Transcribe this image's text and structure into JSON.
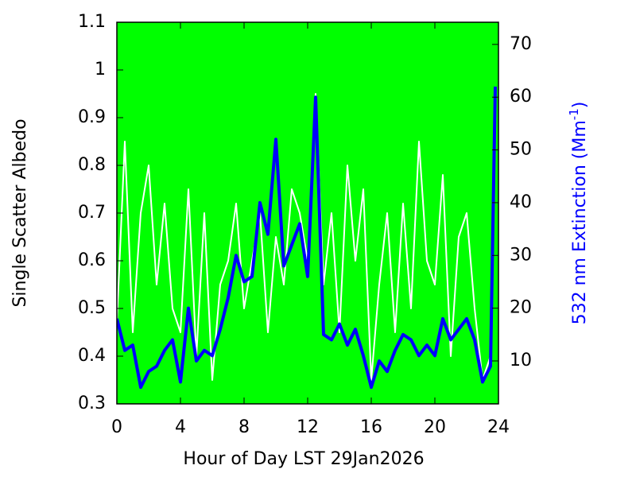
{
  "chart_data": {
    "type": "line",
    "xlabel": "Hour of Day LST 29Jan2026",
    "ylabel": "Single Scatter Albedo",
    "y2label": [
      "532 nm Extinction (Mm",
      "-1",
      ")"
    ],
    "background": "#00ff00",
    "grid": false,
    "x": [
      0,
      0.5,
      1,
      1.5,
      2,
      2.5,
      3,
      3.5,
      4,
      4.5,
      5,
      5.5,
      6,
      6.5,
      7,
      7.5,
      8,
      8.5,
      9,
      9.5,
      10,
      10.5,
      11,
      11.5,
      12,
      12.5,
      13,
      13.5,
      14,
      14.5,
      15,
      15.5,
      16,
      16.5,
      17,
      17.5,
      18,
      18.5,
      19,
      19.5,
      20,
      20.5,
      21,
      21.5,
      22,
      22.5,
      23,
      23.5,
      23.8
    ],
    "xlim": [
      0,
      24
    ],
    "xticks": [
      0,
      4,
      8,
      12,
      16,
      20,
      24
    ],
    "ylim": [
      0.3,
      1.1
    ],
    "yticks": [
      0.3,
      0.4,
      0.5,
      0.6,
      0.7,
      0.8,
      0.9,
      1,
      1.1
    ],
    "y2lim": [
      1.86,
      74.2
    ],
    "y2ticks": [
      10,
      20,
      30,
      40,
      50,
      60,
      70
    ],
    "series": [
      {
        "color": "#ffffff",
        "width": 2,
        "values": [
          0.47,
          0.85,
          0.45,
          0.7,
          0.8,
          0.55,
          0.72,
          0.5,
          0.45,
          0.75,
          0.4,
          0.7,
          0.35,
          0.55,
          0.6,
          0.72,
          0.5,
          0.6,
          0.7,
          0.45,
          0.65,
          0.55,
          0.75,
          0.7,
          0.6,
          0.95,
          0.55,
          0.7,
          0.45,
          0.8,
          0.6,
          0.75,
          0.35,
          0.55,
          0.7,
          0.45,
          0.72,
          0.5,
          0.85,
          0.6,
          0.55,
          0.78,
          0.4,
          0.65,
          0.7,
          0.5,
          0.35,
          0.4,
          0.9
        ]
      },
      {
        "color": "#0000ff",
        "width": 4,
        "axis": "y2",
        "values": [
          18,
          12,
          13,
          5,
          8,
          9,
          12,
          14,
          6,
          20,
          10,
          12,
          11,
          16,
          22,
          30,
          25,
          26,
          40,
          34,
          52,
          28,
          32,
          36,
          26,
          60,
          15,
          14,
          17,
          13,
          16,
          11,
          5,
          10,
          8,
          12,
          15,
          14,
          11,
          13,
          11,
          18,
          14,
          16,
          18,
          14,
          6,
          9,
          62
        ]
      }
    ]
  }
}
